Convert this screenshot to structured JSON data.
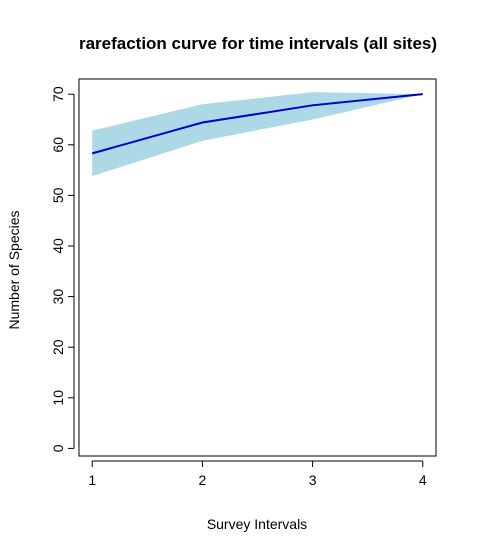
{
  "chart_data": {
    "type": "line",
    "title": "rarefaction curve for time intervals (all sites)",
    "xlabel": "Survey Intervals",
    "ylabel": "Number of Species",
    "x": [
      1,
      2,
      3,
      4
    ],
    "xticks": [
      "1",
      "2",
      "3",
      "4"
    ],
    "yticks": [
      "0",
      "10",
      "20",
      "30",
      "40",
      "50",
      "60",
      "70"
    ],
    "xlim": [
      0.88,
      4.12
    ],
    "ylim": [
      -1.5,
      73
    ],
    "series": [
      {
        "values": [
          58.3,
          64.4,
          67.8,
          70.0
        ],
        "lower": [
          53.8,
          60.8,
          65.0,
          70.0
        ],
        "upper": [
          62.8,
          68.0,
          70.4,
          70.0
        ],
        "color": "#0000CD",
        "band_color": "#ADD8E6"
      }
    ],
    "grid": false,
    "legend": "none"
  }
}
